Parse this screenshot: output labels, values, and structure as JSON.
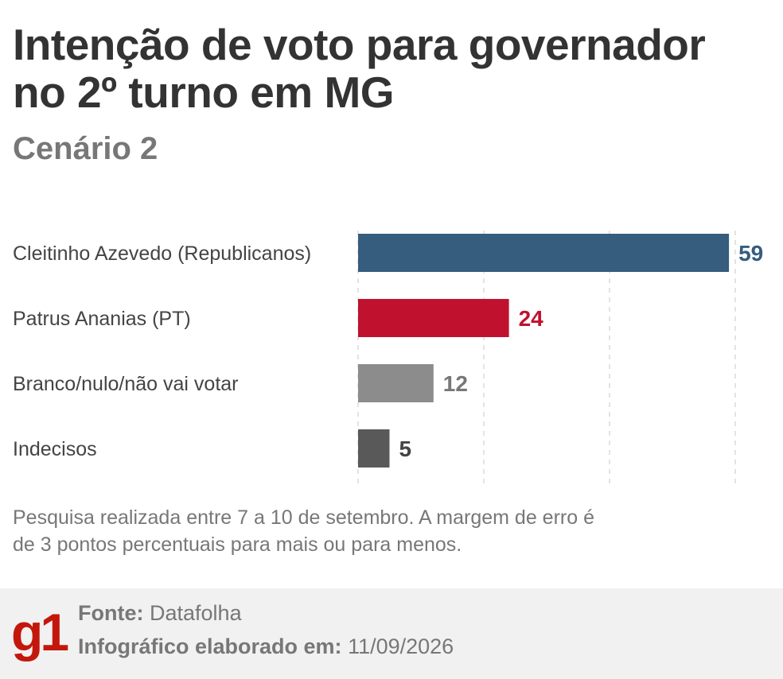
{
  "header": {
    "title": "Intenção de voto para governador no 2º turno em MG",
    "subtitle": "Cenário 2"
  },
  "chart_data": {
    "type": "bar",
    "orientation": "horizontal",
    "categories": [
      "Cleitinho Azevedo (Republicanos)",
      "Patrus Ananias (PT)",
      "Branco/nulo/não vai votar",
      "Indecisos"
    ],
    "values": [
      59,
      24,
      12,
      5
    ],
    "colors": [
      "#365c7e",
      "#c0112f",
      "#8c8c8c",
      "#595959"
    ],
    "label_colors": [
      "#365c7e",
      "#c0112f",
      "#777777",
      "#444444"
    ],
    "xlim": [
      0,
      60
    ],
    "gridlines": [
      0,
      20,
      40,
      60
    ],
    "grid": true
  },
  "note": "Pesquisa realizada entre 7 a 10 de setembro. A margem de erro é de 3 pontos percentuais para mais ou para menos.",
  "footer": {
    "logo_text": "g1",
    "logo_color": "#c4170c",
    "source_label": "Fonte:",
    "source_value": "Datafolha",
    "date_label": "Infográfico elaborado em:",
    "date_value": "11/09/2026"
  }
}
